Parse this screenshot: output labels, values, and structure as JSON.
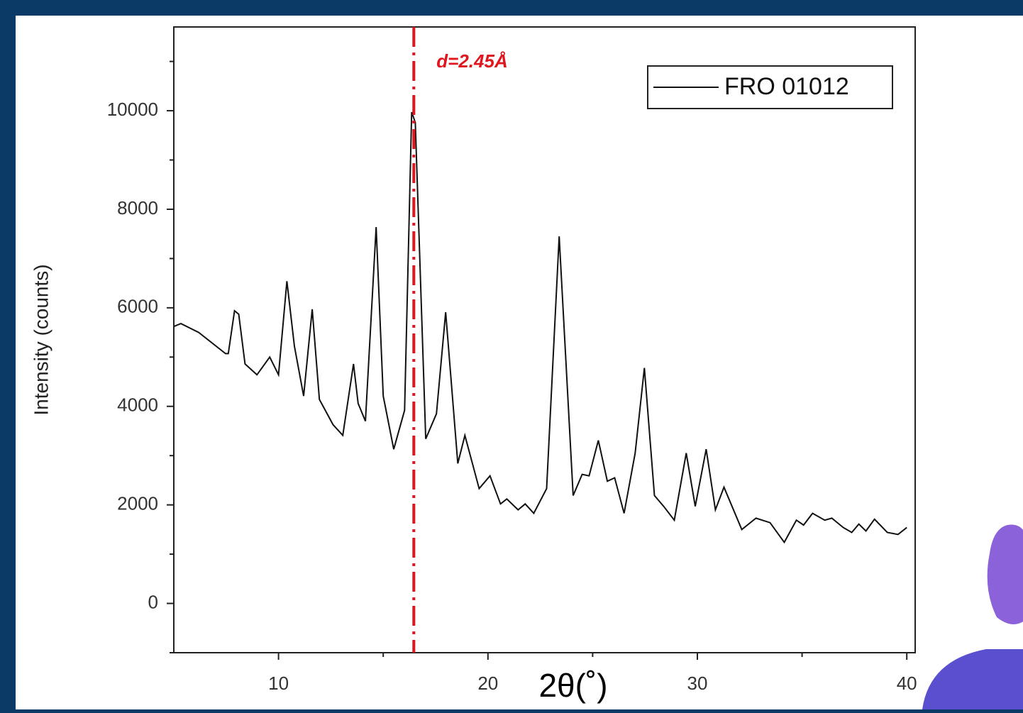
{
  "chart_data": {
    "type": "line",
    "x_label": "2θ(˚)",
    "y_label": "Intensity (counts)",
    "xlim": [
      5,
      40.4
    ],
    "ylim": [
      -1000,
      11700
    ],
    "xticks": [
      10,
      20,
      30,
      40
    ],
    "xminorticks": [
      15,
      25,
      35
    ],
    "yticks": [
      0,
      2000,
      4000,
      6000,
      8000,
      10000
    ],
    "yminorticks": [
      -1000,
      1000,
      3000,
      5000,
      7000,
      9000,
      11000
    ],
    "legend": "upper right",
    "annotation": {
      "text": "d=2.45Å",
      "x": 16.46,
      "color": "#e0161e"
    },
    "series": [
      {
        "name": "FRO 01012",
        "color": "#111111",
        "x": [
          5.0,
          5.34,
          6.19,
          7.47,
          7.6,
          7.9,
          8.1,
          8.4,
          8.97,
          9.58,
          10.0,
          10.4,
          10.76,
          11.2,
          11.61,
          11.95,
          12.6,
          13.07,
          13.58,
          13.8,
          14.15,
          14.66,
          15.0,
          15.5,
          16.02,
          16.36,
          16.53,
          17.03,
          17.54,
          17.98,
          18.56,
          18.9,
          19.58,
          20.1,
          20.6,
          20.9,
          21.44,
          21.78,
          22.19,
          22.8,
          23.4,
          24.07,
          24.5,
          24.83,
          25.27,
          25.7,
          26.05,
          26.5,
          27.03,
          27.47,
          27.95,
          28.39,
          28.9,
          29.47,
          29.9,
          30.42,
          30.86,
          31.27,
          32.12,
          32.8,
          33.47,
          34.15,
          34.73,
          35.07,
          35.5,
          36.08,
          36.42,
          36.97,
          37.37,
          37.71,
          38.05,
          38.46,
          39.07,
          39.58,
          40.0
        ],
        "values": [
          5620,
          5680,
          5500,
          5070,
          5070,
          5940,
          5870,
          4860,
          4640,
          5000,
          4640,
          6540,
          5220,
          4210,
          5970,
          4140,
          3630,
          3410,
          4860,
          4060,
          3700,
          7640,
          4210,
          3130,
          3920,
          9970,
          9760,
          3340,
          3850,
          5910,
          2840,
          3410,
          2330,
          2590,
          2020,
          2120,
          1900,
          2020,
          1830,
          2330,
          7450,
          2190,
          2620,
          2590,
          3310,
          2480,
          2550,
          1830,
          3050,
          4780,
          2190,
          1970,
          1690,
          3050,
          1970,
          3130,
          1900,
          2360,
          1500,
          1730,
          1640,
          1240,
          1690,
          1590,
          1830,
          1690,
          1730,
          1540,
          1440,
          1610,
          1470,
          1710,
          1440,
          1400,
          1540
        ]
      }
    ]
  }
}
